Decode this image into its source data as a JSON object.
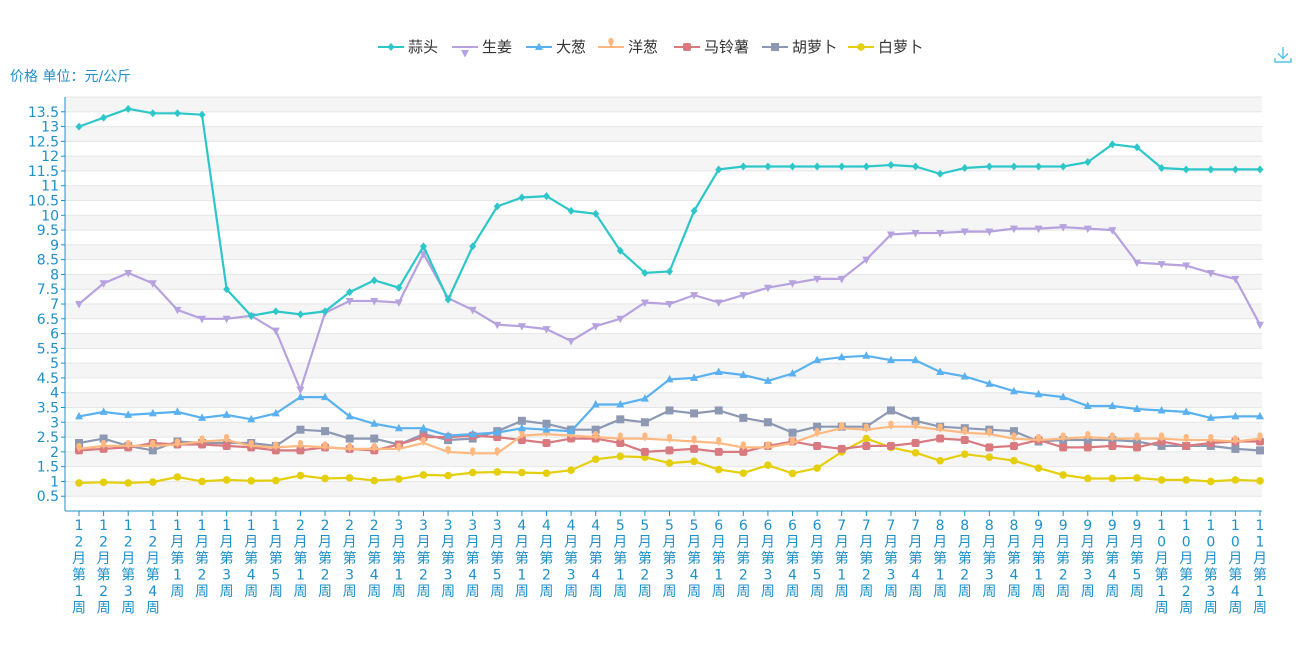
{
  "chart_data": {
    "type": "line",
    "ylabel": "价格 单位：元/公斤",
    "ylim": [
      0,
      14
    ],
    "yticks": [
      0.5,
      1,
      1.5,
      2,
      2.5,
      3,
      3.5,
      4,
      4.5,
      5,
      5.5,
      6,
      6.5,
      7,
      7.5,
      8,
      8.5,
      9,
      9.5,
      10,
      10.5,
      11,
      11.5,
      12,
      12.5,
      13,
      13.5
    ],
    "grid": true,
    "legend_position": "top-center",
    "categories": [
      "12月第1周",
      "12月第2周",
      "12月第3周",
      "12月第4周",
      "1月第1周",
      "1月第2周",
      "1月第3周",
      "1月第4周",
      "1月第5周",
      "2月第1周",
      "2月第2周",
      "2月第3周",
      "2月第4周",
      "3月第1周",
      "3月第2周",
      "3月第3周",
      "3月第4周",
      "3月第5周",
      "4月第1周",
      "4月第2周",
      "4月第3周",
      "4月第4周",
      "5月第1周",
      "5月第2周",
      "5月第3周",
      "5月第4周",
      "6月第1周",
      "6月第2周",
      "6月第3周",
      "6月第4周",
      "6月第5周",
      "7月第1周",
      "7月第2周",
      "7月第3周",
      "7月第4周",
      "8月第1周",
      "8月第2周",
      "8月第3周",
      "8月第4周",
      "9月第1周",
      "9月第2周",
      "9月第3周",
      "9月第4周",
      "9月第5周",
      "10月第1周",
      "10月第2周",
      "10月第3周",
      "10月第4周",
      "11月第1周"
    ],
    "series": [
      {
        "name": "蒜头",
        "color": "#2ec7c9",
        "symbol": "diamond",
        "values": [
          13.0,
          13.3,
          13.6,
          13.45,
          13.45,
          13.4,
          7.5,
          6.6,
          6.75,
          6.65,
          6.75,
          7.4,
          7.8,
          7.55,
          8.95,
          7.15,
          8.95,
          10.3,
          10.6,
          10.65,
          10.15,
          10.05,
          8.8,
          8.05,
          8.1,
          10.15,
          11.55,
          11.65,
          11.65,
          11.65,
          11.65,
          11.65,
          11.65,
          11.7,
          11.65,
          11.4,
          11.6,
          11.65,
          11.65,
          11.65,
          11.65,
          11.8,
          12.4,
          12.3,
          11.6,
          11.55,
          11.55,
          11.55,
          11.55
        ]
      },
      {
        "name": "生姜",
        "color": "#b6a2de",
        "symbol": "triangle-down",
        "values": [
          7.0,
          7.7,
          8.05,
          7.7,
          6.8,
          6.5,
          6.5,
          6.6,
          6.1,
          4.1,
          6.7,
          7.1,
          7.1,
          7.05,
          8.7,
          7.2,
          6.8,
          6.3,
          6.25,
          6.15,
          5.75,
          6.25,
          6.5,
          7.05,
          7.0,
          7.3,
          7.05,
          7.3,
          7.55,
          7.7,
          7.85,
          7.85,
          8.5,
          9.35,
          9.4,
          9.4,
          9.45,
          9.45,
          9.55,
          9.55,
          9.6,
          9.55,
          9.5,
          8.4,
          8.35,
          8.3,
          8.05,
          7.85,
          6.3
        ]
      },
      {
        "name": "大葱",
        "color": "#5ab1ef",
        "symbol": "triangle",
        "values": [
          3.2,
          3.35,
          3.25,
          3.3,
          3.35,
          3.15,
          3.25,
          3.1,
          3.3,
          3.85,
          3.85,
          3.2,
          2.95,
          2.8,
          2.8,
          2.55,
          2.6,
          2.65,
          2.8,
          2.75,
          2.7,
          3.6,
          3.6,
          3.8,
          4.45,
          4.5,
          4.7,
          4.6,
          4.4,
          4.65,
          5.1,
          5.2,
          5.25,
          5.1,
          5.1,
          4.7,
          4.55,
          4.3,
          4.05,
          3.95,
          3.85,
          3.55,
          3.55,
          3.45,
          3.4,
          3.35,
          3.15,
          3.2,
          3.2
        ]
      },
      {
        "name": "洋葱",
        "color": "#ffb980",
        "symbol": "pin",
        "values": [
          2.1,
          2.2,
          2.2,
          2.2,
          2.25,
          2.35,
          2.4,
          2.2,
          2.15,
          2.2,
          2.15,
          2.1,
          2.1,
          2.1,
          2.3,
          2.0,
          1.95,
          1.95,
          2.55,
          2.6,
          2.55,
          2.5,
          2.45,
          2.45,
          2.4,
          2.35,
          2.3,
          2.15,
          2.15,
          2.3,
          2.6,
          2.8,
          2.75,
          2.85,
          2.85,
          2.75,
          2.65,
          2.6,
          2.45,
          2.4,
          2.45,
          2.5,
          2.45,
          2.45,
          2.45,
          2.4,
          2.4,
          2.35,
          2.45
        ]
      },
      {
        "name": "马铃薯",
        "color": "#d87a80",
        "symbol": "roundRect",
        "values": [
          2.05,
          2.1,
          2.15,
          2.3,
          2.25,
          2.25,
          2.2,
          2.15,
          2.05,
          2.05,
          2.15,
          2.1,
          2.05,
          2.25,
          2.5,
          2.5,
          2.55,
          2.5,
          2.4,
          2.3,
          2.45,
          2.45,
          2.3,
          2.0,
          2.05,
          2.1,
          2.0,
          2.0,
          2.2,
          2.35,
          2.2,
          2.1,
          2.2,
          2.2,
          2.3,
          2.45,
          2.4,
          2.15,
          2.2,
          2.4,
          2.15,
          2.15,
          2.2,
          2.15,
          2.35,
          2.2,
          2.3,
          2.35,
          2.35
        ]
      },
      {
        "name": "胡萝卜",
        "color": "#8d98b3",
        "symbol": "rect",
        "values": [
          2.3,
          2.45,
          2.2,
          2.05,
          2.35,
          2.3,
          2.3,
          2.3,
          2.2,
          2.75,
          2.7,
          2.45,
          2.45,
          2.25,
          2.6,
          2.4,
          2.45,
          2.7,
          3.05,
          2.95,
          2.75,
          2.75,
          3.1,
          3.0,
          3.4,
          3.3,
          3.4,
          3.15,
          3.0,
          2.65,
          2.85,
          2.85,
          2.85,
          3.4,
          3.05,
          2.85,
          2.8,
          2.75,
          2.7,
          2.35,
          2.4,
          2.4,
          2.4,
          2.35,
          2.2,
          2.2,
          2.2,
          2.1,
          2.05
        ]
      },
      {
        "name": "白萝卜",
        "color": "#e5cf0d",
        "symbol": "circle",
        "values": [
          0.95,
          0.97,
          0.95,
          0.98,
          1.15,
          1.0,
          1.05,
          1.02,
          1.03,
          1.2,
          1.1,
          1.12,
          1.03,
          1.08,
          1.22,
          1.2,
          1.3,
          1.32,
          1.3,
          1.28,
          1.38,
          1.75,
          1.85,
          1.82,
          1.62,
          1.68,
          1.4,
          1.28,
          1.55,
          1.27,
          1.45,
          2.0,
          2.45,
          2.15,
          1.97,
          1.7,
          1.92,
          1.82,
          1.7,
          1.45,
          1.22,
          1.1,
          1.1,
          1.12,
          1.05,
          1.05,
          1.0,
          1.05,
          1.02
        ]
      }
    ]
  },
  "colors": {
    "axis": "#1e90c8",
    "grid": "#e6e6e6",
    "band": "#f5f5f5",
    "legend_text": "#333333"
  },
  "toolbar": {
    "download_icon": "download-icon"
  }
}
